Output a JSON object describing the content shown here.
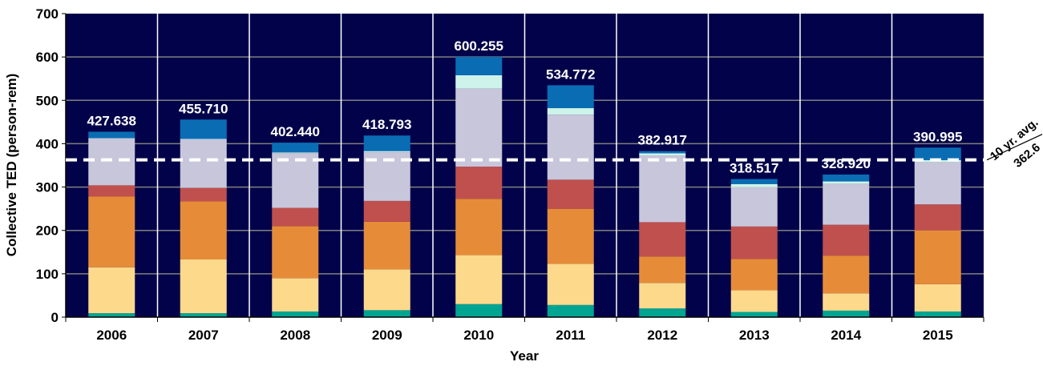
{
  "chart_data": {
    "type": "bar",
    "stacked": true,
    "title": "",
    "xlabel": "Year",
    "ylabel": "Collective TED (person-rem)",
    "ylim": [
      0,
      700
    ],
    "yticks": [
      0,
      100,
      200,
      300,
      400,
      500,
      600,
      700
    ],
    "grid": true,
    "categories": [
      "2006",
      "2007",
      "2008",
      "2009",
      "2010",
      "2011",
      "2012",
      "2013",
      "2014",
      "2015"
    ],
    "totals_labels": [
      "427.638",
      "455.710",
      "402.440",
      "418.793",
      "600.255",
      "534.772",
      "382.917",
      "318.517",
      "328.920",
      "390.995"
    ],
    "series": [
      {
        "color": "#00a591",
        "values": [
          9,
          9,
          13,
          16,
          30,
          28,
          20,
          12,
          15,
          13
        ]
      },
      {
        "color": "#fdd98b",
        "values": [
          106,
          124,
          77,
          94,
          113,
          95,
          59,
          50,
          40,
          63
        ]
      },
      {
        "color": "#e68c38",
        "values": [
          163,
          134,
          120,
          110,
          130,
          127,
          61,
          72,
          87,
          124
        ]
      },
      {
        "color": "#c0504d",
        "values": [
          26,
          31,
          42,
          48,
          74,
          67,
          79,
          75,
          71,
          60
        ]
      },
      {
        "color": "#c8c6da",
        "values": [
          108,
          112,
          126,
          112,
          180,
          150,
          154,
          91,
          94,
          97
        ]
      },
      {
        "color": "#cdf3ea",
        "values": [
          1,
          1,
          2,
          3,
          31,
          15,
          5,
          7,
          6,
          5
        ]
      },
      {
        "color": "#0a6db4",
        "values": [
          14.6,
          44.7,
          22.4,
          35.8,
          42.3,
          52.8,
          4.9,
          11.5,
          15.9,
          29
        ]
      }
    ],
    "reference_line": {
      "value": 362.6,
      "label_top": "10 yr. avg.",
      "label_bottom": "362.6",
      "style": "dashed",
      "color": "#ffffff"
    },
    "plot_background": "#02024a"
  }
}
